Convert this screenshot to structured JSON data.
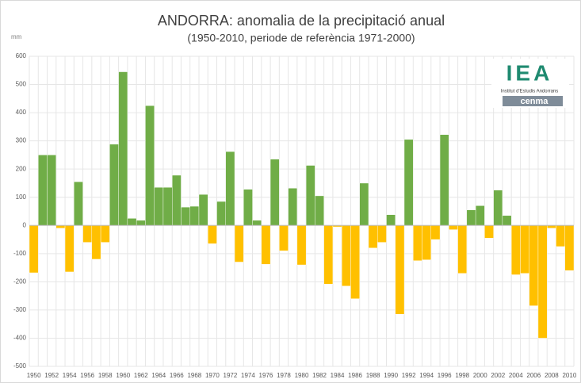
{
  "chart_data": {
    "type": "bar",
    "title": "ANDORRA: anomalia de la precipitació anual",
    "subtitle": "(1950-2010, periode de referència 1971-2000)",
    "y_label": "mm",
    "logo": {
      "mark": "IEA",
      "institute": "Institut d'Estudis Andorrans",
      "brand": "cenma"
    },
    "categories": [
      "1950",
      null,
      "1952",
      null,
      "1954",
      null,
      "1956",
      null,
      "1958",
      null,
      "1960",
      null,
      "1962",
      null,
      "1964",
      null,
      "1966",
      null,
      "1968",
      null,
      "1970",
      null,
      "1972",
      null,
      "1974",
      null,
      "1976",
      null,
      "1978",
      null,
      "1980",
      null,
      "1982",
      null,
      "1984",
      null,
      "1986",
      null,
      "1988",
      null,
      "1990",
      null,
      "1992",
      null,
      "1994",
      null,
      "1996",
      null,
      "1998",
      null,
      "2000",
      null,
      "2002",
      null,
      "2004",
      null,
      "2006",
      null,
      "2008",
      null,
      "2010"
    ],
    "values": [
      -168,
      250,
      250,
      -10,
      -165,
      155,
      -60,
      -120,
      -60,
      288,
      545,
      25,
      18,
      425,
      135,
      135,
      178,
      65,
      68,
      110,
      -65,
      85,
      262,
      -130,
      128,
      18,
      -138,
      235,
      -90,
      132,
      -140,
      213,
      105,
      -208,
      -5,
      -215,
      -260,
      150,
      -80,
      -60,
      38,
      -315,
      305,
      -125,
      -122,
      -50,
      322,
      -15,
      -170,
      55,
      70,
      -45,
      125,
      35,
      -175,
      -170,
      -285,
      -400,
      -10,
      -75,
      -160
    ],
    "color_positive": "#70ad47",
    "color_negative": "#ffc000",
    "ylim": [
      -500,
      600
    ],
    "yticks": [
      -500,
      -400,
      -300,
      -200,
      -100,
      0,
      100,
      200,
      300,
      400,
      500,
      600
    ],
    "grid": true
  }
}
